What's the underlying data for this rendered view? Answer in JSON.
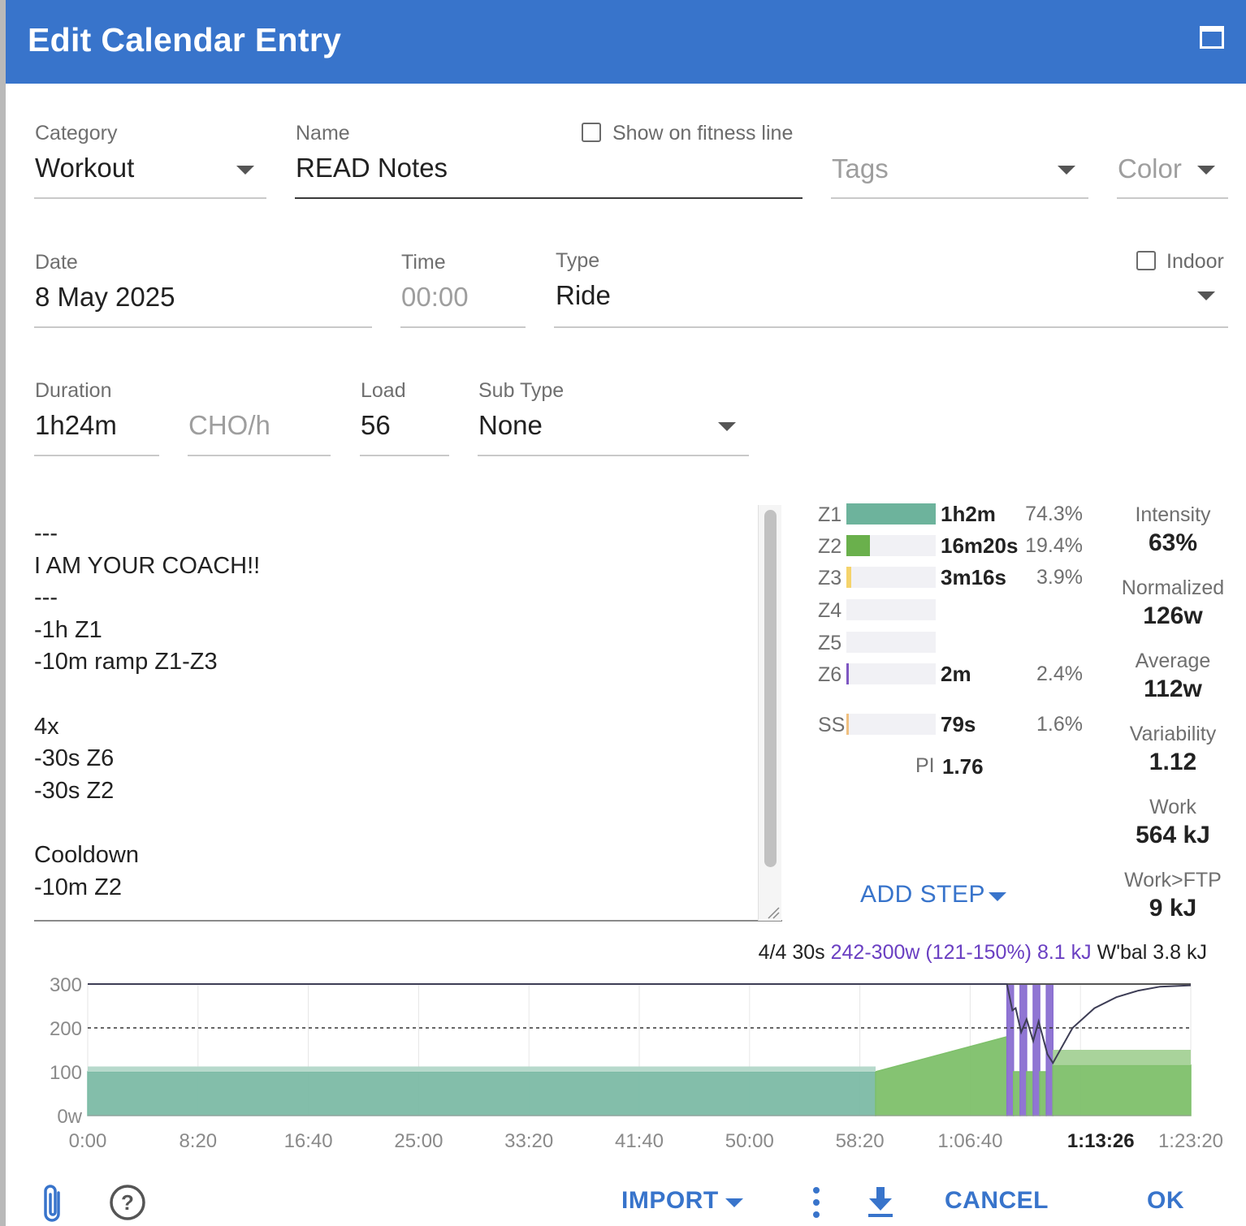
{
  "dialog": {
    "title": "Edit Calendar Entry",
    "maximize_icon": "maximize-icon"
  },
  "fields": {
    "category": {
      "label": "Category",
      "value": "Workout"
    },
    "name": {
      "label": "Name",
      "value": "READ Notes"
    },
    "show_fitness": {
      "label": "Show on fitness line",
      "checked": false
    },
    "tags": {
      "placeholder": "Tags"
    },
    "color": {
      "placeholder": "Color"
    },
    "date": {
      "label": "Date",
      "value": "8 May 2025"
    },
    "time": {
      "label": "Time",
      "placeholder": "00:00"
    },
    "type": {
      "label": "Type",
      "value": "Ride"
    },
    "indoor": {
      "label": "Indoor",
      "checked": false
    },
    "duration": {
      "label": "Duration",
      "value": "1h24m"
    },
    "cho": {
      "placeholder": "CHO/h"
    },
    "load": {
      "label": "Load",
      "value": "56"
    },
    "subtype": {
      "label": "Sub Type",
      "value": "None"
    }
  },
  "notes": [
    "---",
    "I AM YOUR COACH!!",
    "---",
    "-1h Z1",
    "-10m ramp Z1-Z3",
    "",
    "4x",
    "-30s Z6",
    "-30s Z2",
    "",
    "Cooldown",
    "-10m Z2"
  ],
  "zones": [
    {
      "name": "Z1",
      "fraction": 1.0,
      "color": "#6db39c",
      "duration": "1h2m",
      "pct": "74.3%"
    },
    {
      "name": "Z2",
      "fraction": 0.26,
      "color": "#6ab04c",
      "duration": "16m20s",
      "pct": "19.4%"
    },
    {
      "name": "Z3",
      "fraction": 0.05,
      "color": "#f5d36b",
      "duration": "3m16s",
      "pct": "3.9%"
    },
    {
      "name": "Z4",
      "fraction": 0,
      "color": "#f0a04b",
      "duration": "",
      "pct": ""
    },
    {
      "name": "Z5",
      "fraction": 0,
      "color": "#e5533d",
      "duration": "",
      "pct": ""
    },
    {
      "name": "Z6",
      "fraction": 0.03,
      "color": "#7e57c2",
      "duration": "2m",
      "pct": "2.4%"
    },
    {
      "name": "SS",
      "fraction": 0.02,
      "color": "#f0c080",
      "duration": "79s",
      "pct": "1.6%"
    }
  ],
  "pi": {
    "label": "PI",
    "value": "1.76"
  },
  "stats": [
    {
      "label": "Intensity",
      "value": "63%"
    },
    {
      "label": "Normalized",
      "value": "126w"
    },
    {
      "label": "Average",
      "value": "112w"
    },
    {
      "label": "Variability",
      "value": "1.12"
    },
    {
      "label": "Work",
      "value": "564 kJ"
    },
    {
      "label": "Work>FTP",
      "value": "9 kJ"
    }
  ],
  "add_step": "ADD STEP",
  "chart_header": {
    "step": "4/4 30s",
    "power": "242-300w (121-150%) 8.1 kJ",
    "wbal": "W'bal 3.8 kJ"
  },
  "chart_data": {
    "type": "area",
    "x_unit": "seconds",
    "xlim": [
      0,
      5040
    ],
    "ylim": [
      0,
      300
    ],
    "y_ticks": [
      "300",
      "200",
      "100",
      "0w"
    ],
    "x_ticks": [
      "0:00",
      "8:20",
      "16:40",
      "25:00",
      "33:20",
      "41:40",
      "50:00",
      "58:20",
      "1:06:40",
      "1:13:26",
      "1:23:20"
    ],
    "ftp_line": 200,
    "segments": [
      {
        "start": 0,
        "end": 3600,
        "from": 100,
        "to": 100,
        "color": "#7cbba5"
      },
      {
        "start": 3600,
        "end": 4200,
        "from": 100,
        "to": 180,
        "color": "#7ec06a"
      },
      {
        "start": 4200,
        "end": 4230,
        "from": 300,
        "to": 300,
        "color": "#8a6fd1"
      },
      {
        "start": 4230,
        "end": 4260,
        "from": 100,
        "to": 100,
        "color": "#7ec06a"
      },
      {
        "start": 4260,
        "end": 4290,
        "from": 300,
        "to": 300,
        "color": "#8a6fd1"
      },
      {
        "start": 4290,
        "end": 4320,
        "from": 100,
        "to": 100,
        "color": "#7ec06a"
      },
      {
        "start": 4320,
        "end": 4350,
        "from": 300,
        "to": 300,
        "color": "#8a6fd1"
      },
      {
        "start": 4350,
        "end": 4380,
        "from": 100,
        "to": 100,
        "color": "#7ec06a"
      },
      {
        "start": 4380,
        "end": 4410,
        "from": 300,
        "to": 300,
        "color": "#8a6fd1"
      },
      {
        "start": 4410,
        "end": 5040,
        "from": 115,
        "to": 115,
        "color": "#7ec06a"
      }
    ],
    "wbal_series": [
      [
        0,
        300
      ],
      [
        4200,
        300
      ],
      [
        4225,
        240
      ],
      [
        4240,
        245
      ],
      [
        4265,
        190
      ],
      [
        4290,
        220
      ],
      [
        4320,
        170
      ],
      [
        4345,
        215
      ],
      [
        4385,
        140
      ],
      [
        4410,
        120
      ],
      [
        4500,
        200
      ],
      [
        4600,
        245
      ],
      [
        4700,
        270
      ],
      [
        4800,
        285
      ],
      [
        4900,
        294
      ],
      [
        5040,
        297
      ]
    ]
  },
  "footer": {
    "attach_icon": "paperclip-icon",
    "help_icon": "help-icon",
    "import": "IMPORT",
    "more_icon": "more-vert-icon",
    "download_icon": "download-icon",
    "cancel": "CANCEL",
    "ok": "OK"
  }
}
